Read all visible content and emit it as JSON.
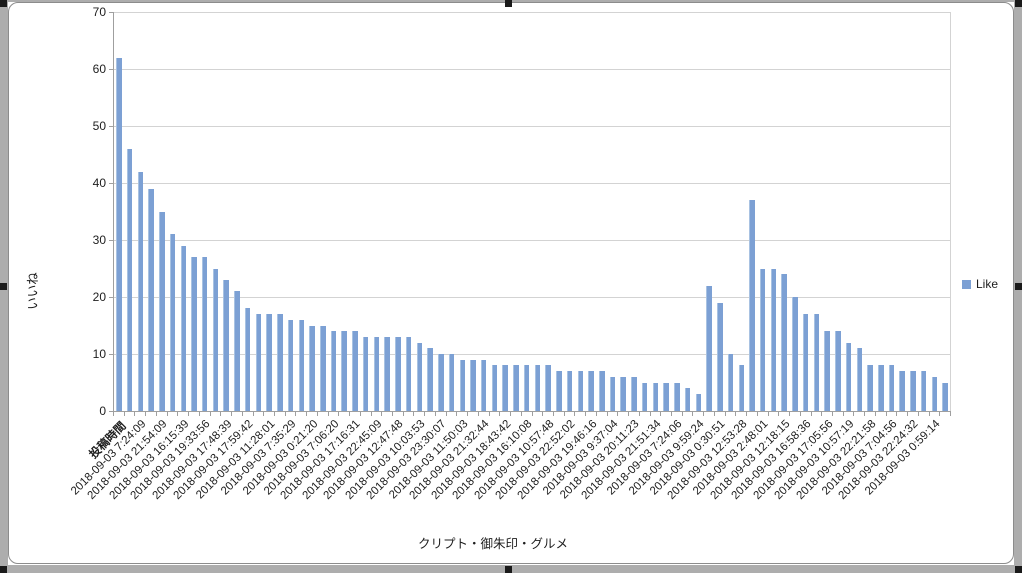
{
  "chart_data": {
    "type": "bar",
    "title": "",
    "xlabel": "クリプト・御朱印・グルメ",
    "ylabel": "いいね",
    "ylim": [
      0,
      70
    ],
    "ytick_interval": 10,
    "yticks": [
      0,
      10,
      20,
      30,
      40,
      50,
      60,
      70
    ],
    "grid": true,
    "legend_position": "right",
    "label_interval": 2,
    "categories": [
      "投稿時間",
      "",
      "2018-09-03 7:24:09",
      "",
      "2018-09-03 21:54:09",
      "",
      "2018-09-03 16:15:39",
      "",
      "2018-09-03 19:33:56",
      "",
      "2018-09-03 17:48:39",
      "",
      "2018-09-03 17:59:42",
      "",
      "2018-09-03 11:28:01",
      "",
      "2018-09-03 7:35:29",
      "",
      "2018-09-03 0:21:20",
      "",
      "2018-09-03 7:06:20",
      "",
      "2018-09-03 17:16:31",
      "",
      "2018-09-03 22:45:09",
      "",
      "2018-09-03 12:47:48",
      "",
      "2018-09-03 10:03:53",
      "",
      "2018-09-03 23:30:07",
      "",
      "2018-09-03 11:50:03",
      "",
      "2018-09-03 21:32:44",
      "",
      "2018-09-03 18:43:42",
      "",
      "2018-09-03 16:10:08",
      "",
      "2018-09-03 10:57:48",
      "",
      "2018-09-03 22:52:02",
      "",
      "2018-09-03 19:46:16",
      "",
      "2018-09-03 9:37:04",
      "",
      "2018-09-03 20:11:23",
      "",
      "2018-09-03 21:51:34",
      "",
      "2018-09-03 7:24:06",
      "",
      "2018-09-03 9:59:24",
      "",
      "2018-09-03 0:30:51",
      "",
      "2018-09-03 12:53:28",
      "",
      "2018-09-03 2:48:01",
      "",
      "2018-09-03 12:18:15",
      "",
      "2018-09-03 16:58:36",
      "",
      "2018-09-03 17:05:56",
      "",
      "2018-09-03 10:57:19",
      "",
      "2018-09-03 22:21:58",
      "",
      "2018-09-03 7:04:56",
      "",
      "2018-09-03 22:24:32",
      "",
      "2018-09-03 0:59:14",
      ""
    ],
    "series": [
      {
        "name": "Like",
        "values": [
          62,
          46,
          42,
          39,
          35,
          31,
          29,
          27,
          27,
          25,
          23,
          21,
          18,
          17,
          17,
          17,
          16,
          16,
          15,
          15,
          14,
          14,
          14,
          13,
          13,
          13,
          13,
          13,
          12,
          11,
          10,
          10,
          9,
          9,
          9,
          8,
          8,
          8,
          8,
          8,
          8,
          7,
          7,
          7,
          7,
          7,
          6,
          6,
          6,
          5,
          5,
          5,
          5,
          4,
          3,
          22,
          19,
          10,
          8,
          37,
          25,
          25,
          24,
          20,
          17,
          17,
          14,
          14,
          12,
          11,
          8,
          8,
          8,
          7,
          7,
          7,
          6,
          5
        ]
      }
    ]
  },
  "colors": {
    "bar": "#7ca0d4",
    "gridline": "#d3d3d3",
    "axis": "#9f9f9f",
    "selection_frame": "#adadad",
    "selection_handle": "#1a1a1a",
    "chart_border": "#8c8c8c"
  }
}
